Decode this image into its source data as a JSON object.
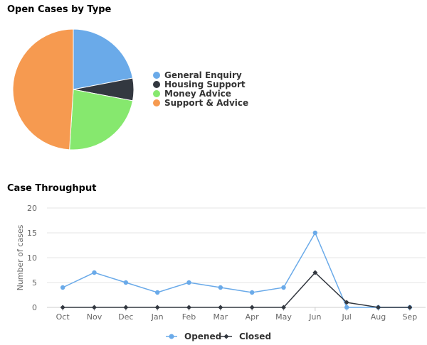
{
  "chart_data": [
    {
      "type": "pie",
      "title": "Open Cases by Type",
      "categories": [
        "General Enquiry",
        "Housing Support",
        "Money Advice",
        "Support & Advice"
      ],
      "values": [
        22,
        6,
        23,
        49
      ],
      "colors": [
        "#6aaae9",
        "#333840",
        "#86e86e",
        "#f69a50"
      ],
      "legend": "right"
    },
    {
      "type": "line",
      "title": "Case Throughput",
      "categories": [
        "Oct",
        "Nov",
        "Dec",
        "Jan",
        "Feb",
        "Mar",
        "Apr",
        "May",
        "Jun",
        "Jul",
        "Aug",
        "Sep"
      ],
      "series": [
        {
          "name": "Opened",
          "color": "#6aaae9",
          "marker": "circle",
          "values": [
            4,
            7,
            5,
            3,
            5,
            4,
            3,
            4,
            15,
            0,
            0,
            0
          ]
        },
        {
          "name": "Closed",
          "color": "#333840",
          "marker": "diamond",
          "values": [
            0,
            0,
            0,
            0,
            0,
            0,
            0,
            0,
            7,
            1,
            0,
            0
          ]
        }
      ],
      "xlabel": "",
      "ylabel": "Number of cases",
      "ylim": [
        0,
        20
      ],
      "yticks": [
        0,
        5,
        10,
        15,
        20
      ],
      "grid": true,
      "legend": "bottom"
    }
  ]
}
